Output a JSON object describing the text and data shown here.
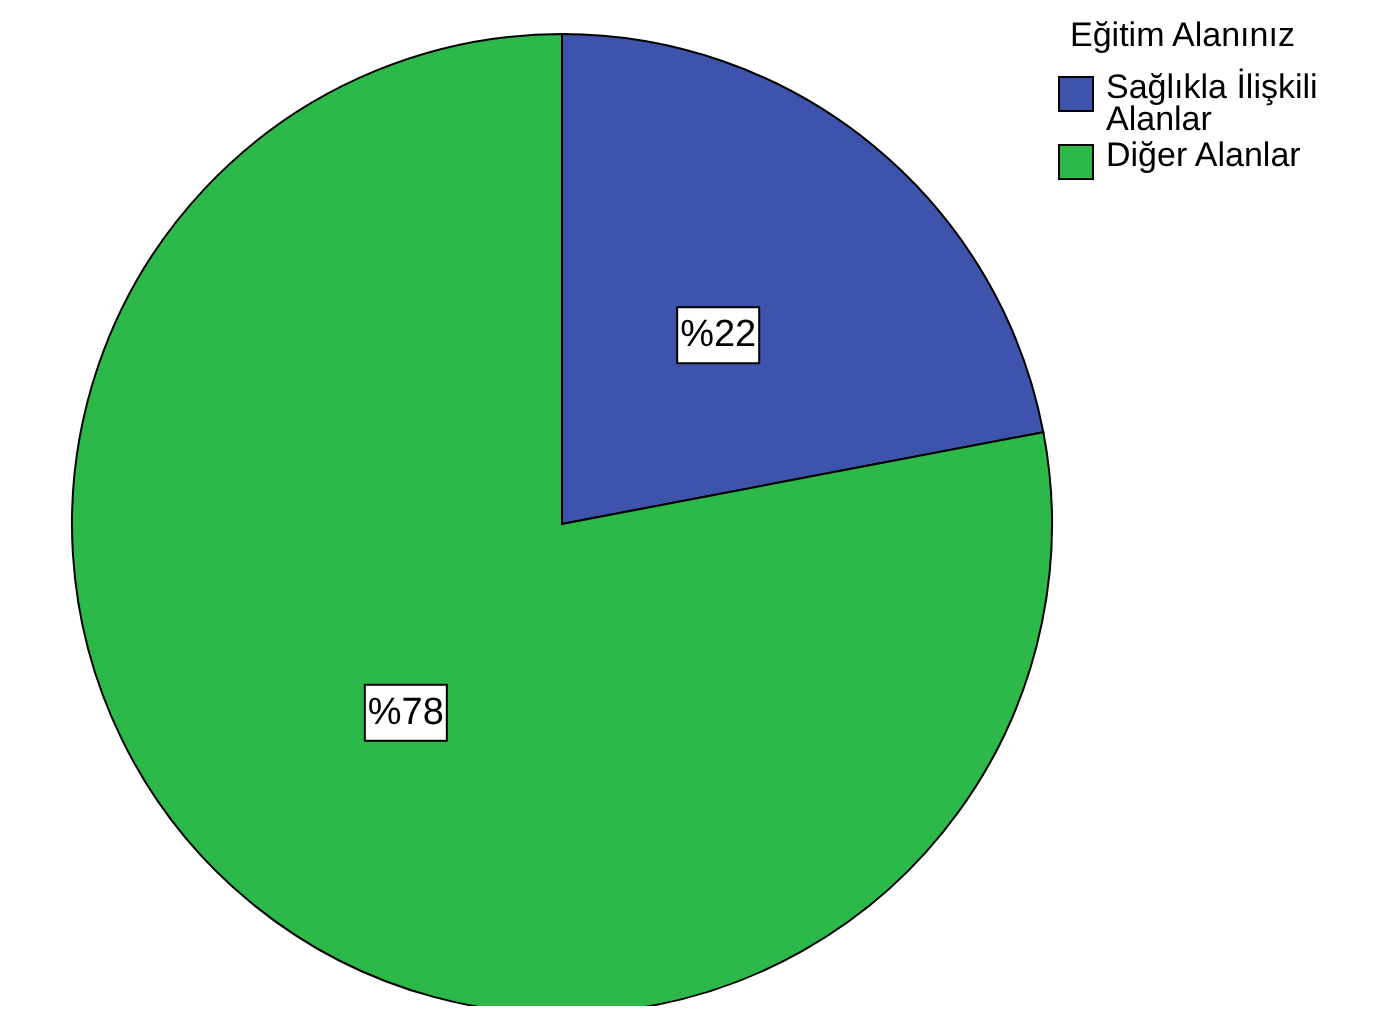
{
  "chart_data": {
    "type": "pie",
    "legend_title": "Eğitim Alanınız",
    "categories": [
      "Sağlıkla İlişkili Alanlar",
      "Diğer Alanlar"
    ],
    "values": [
      22,
      78
    ],
    "colors": [
      "#3d53ac",
      "#2db84a"
    ],
    "value_labels": [
      "%22",
      "%78"
    ],
    "legend": "top right"
  }
}
